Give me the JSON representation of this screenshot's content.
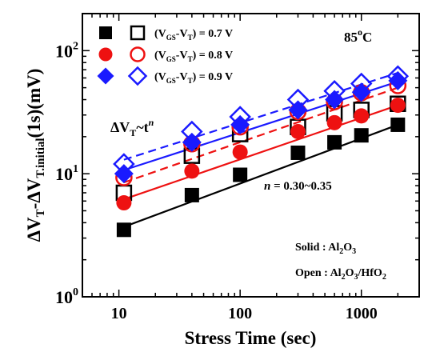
{
  "chart_data": {
    "type": "scatter",
    "xscale": "log",
    "yscale": "log",
    "xlim": [
      5,
      3000
    ],
    "ylim": [
      1,
      200
    ],
    "xlabel": "Stress Time (sec)",
    "ylabel": {
      "delta1": "ΔV",
      "sub1": "T",
      "mid": "-ΔV",
      "sub2": "T.initial",
      "tail": "(1s)(mV)"
    },
    "x_ticks": [
      {
        "value": 10,
        "label": "10"
      },
      {
        "value": 100,
        "label": "100"
      },
      {
        "value": 1000,
        "label": "1000"
      }
    ],
    "y_ticks": [
      {
        "value": 1,
        "base": "10",
        "exp": "0"
      },
      {
        "value": 10,
        "base": "10",
        "exp": "1"
      },
      {
        "value": 100,
        "base": "10",
        "exp": "2"
      }
    ],
    "x": [
      11,
      40,
      100,
      300,
      600,
      1000,
      2000
    ],
    "series": [
      {
        "condition": "0.7 V",
        "material": "Al2O3",
        "marker": "square",
        "filled": true,
        "color": "#000000",
        "line": "solid",
        "values": [
          3.5,
          6.7,
          9.8,
          14.8,
          18.0,
          20.5,
          25.0
        ]
      },
      {
        "condition": "0.7 V",
        "material": "Al2O3/HfO2",
        "marker": "square",
        "filled": false,
        "color": "#000000",
        "line": "none",
        "values": [
          7.0,
          14.0,
          21.0,
          24.0,
          31.0,
          33.0,
          37.0
        ]
      },
      {
        "condition": "0.8 V",
        "material": "Al2O3",
        "marker": "circle",
        "filled": true,
        "color": "#ee1111",
        "line": "solid",
        "values": [
          5.8,
          10.5,
          15.0,
          22.0,
          26.0,
          29.5,
          36.0
        ]
      },
      {
        "condition": "0.8 V",
        "material": "Al2O3/HfO2",
        "marker": "circle",
        "filled": false,
        "color": "#ee1111",
        "line": "dashed",
        "values": [
          9.3,
          17.5,
          24.0,
          32.0,
          38.5,
          45.5,
          52.0
        ]
      },
      {
        "condition": "0.9 V",
        "material": "Al2O3",
        "marker": "diamond",
        "filled": true,
        "color": "#1a1aff",
        "line": "solid",
        "values": [
          10.0,
          18.0,
          25.0,
          33.0,
          40.0,
          46.0,
          57.0
        ]
      },
      {
        "condition": "0.9 V",
        "material": "Al2O3/HfO2",
        "marker": "diamond",
        "filled": false,
        "color": "#1a1aff",
        "line": "dashed",
        "values": [
          12.0,
          22.0,
          29.0,
          40.0,
          47.0,
          54.0,
          62.0
        ]
      }
    ],
    "fits": [
      {
        "color": "#000000",
        "dash": false,
        "x": [
          11,
          2000
        ],
        "y": [
          3.7,
          25.0
        ]
      },
      {
        "color": "#ee1111",
        "dash": false,
        "x": [
          11,
          2000
        ],
        "y": [
          6.2,
          36.0
        ]
      },
      {
        "color": "#ee1111",
        "dash": true,
        "x": [
          11,
          2000
        ],
        "y": [
          8.5,
          50.0
        ]
      },
      {
        "color": "#1a1aff",
        "dash": false,
        "x": [
          11,
          2000
        ],
        "y": [
          10.7,
          56.0
        ]
      },
      {
        "color": "#1a1aff",
        "dash": true,
        "x": [
          11,
          2000
        ],
        "y": [
          13.0,
          66.0
        ]
      }
    ],
    "legend": {
      "placement": "top-left",
      "entries": [
        {
          "prefix": "(V",
          "sub1": "GS",
          "mid": "-V",
          "sub2": "T",
          "suffix": ") = 0.7 V",
          "color": "#000000",
          "marker": "square"
        },
        {
          "prefix": "(V",
          "sub1": "GS",
          "mid": "-V",
          "sub2": "T",
          "suffix": ") = 0.8 V",
          "color": "#ee1111",
          "marker": "circle"
        },
        {
          "prefix": "(V",
          "sub1": "GS",
          "mid": "-V",
          "sub2": "T",
          "suffix": ") = 0.9 V",
          "color": "#1a1aff",
          "marker": "diamond"
        }
      ]
    },
    "annotations": {
      "temperature": {
        "value": "85",
        "sup": "o",
        "unit": "C"
      },
      "power_law": {
        "base": "ΔV",
        "sub": "T",
        "mid": "~t",
        "sup": "n"
      },
      "exponent": {
        "italic": "n",
        "text": " = 0.30~0.35"
      },
      "solid": {
        "label": "Solid : Al",
        "s1": "2",
        "t1": "O",
        "s2": "3"
      },
      "open": {
        "label": "Open : Al",
        "s1": "2",
        "t1": "O",
        "s2": "3",
        "t2": "/HfO",
        "s3": "2"
      }
    }
  }
}
